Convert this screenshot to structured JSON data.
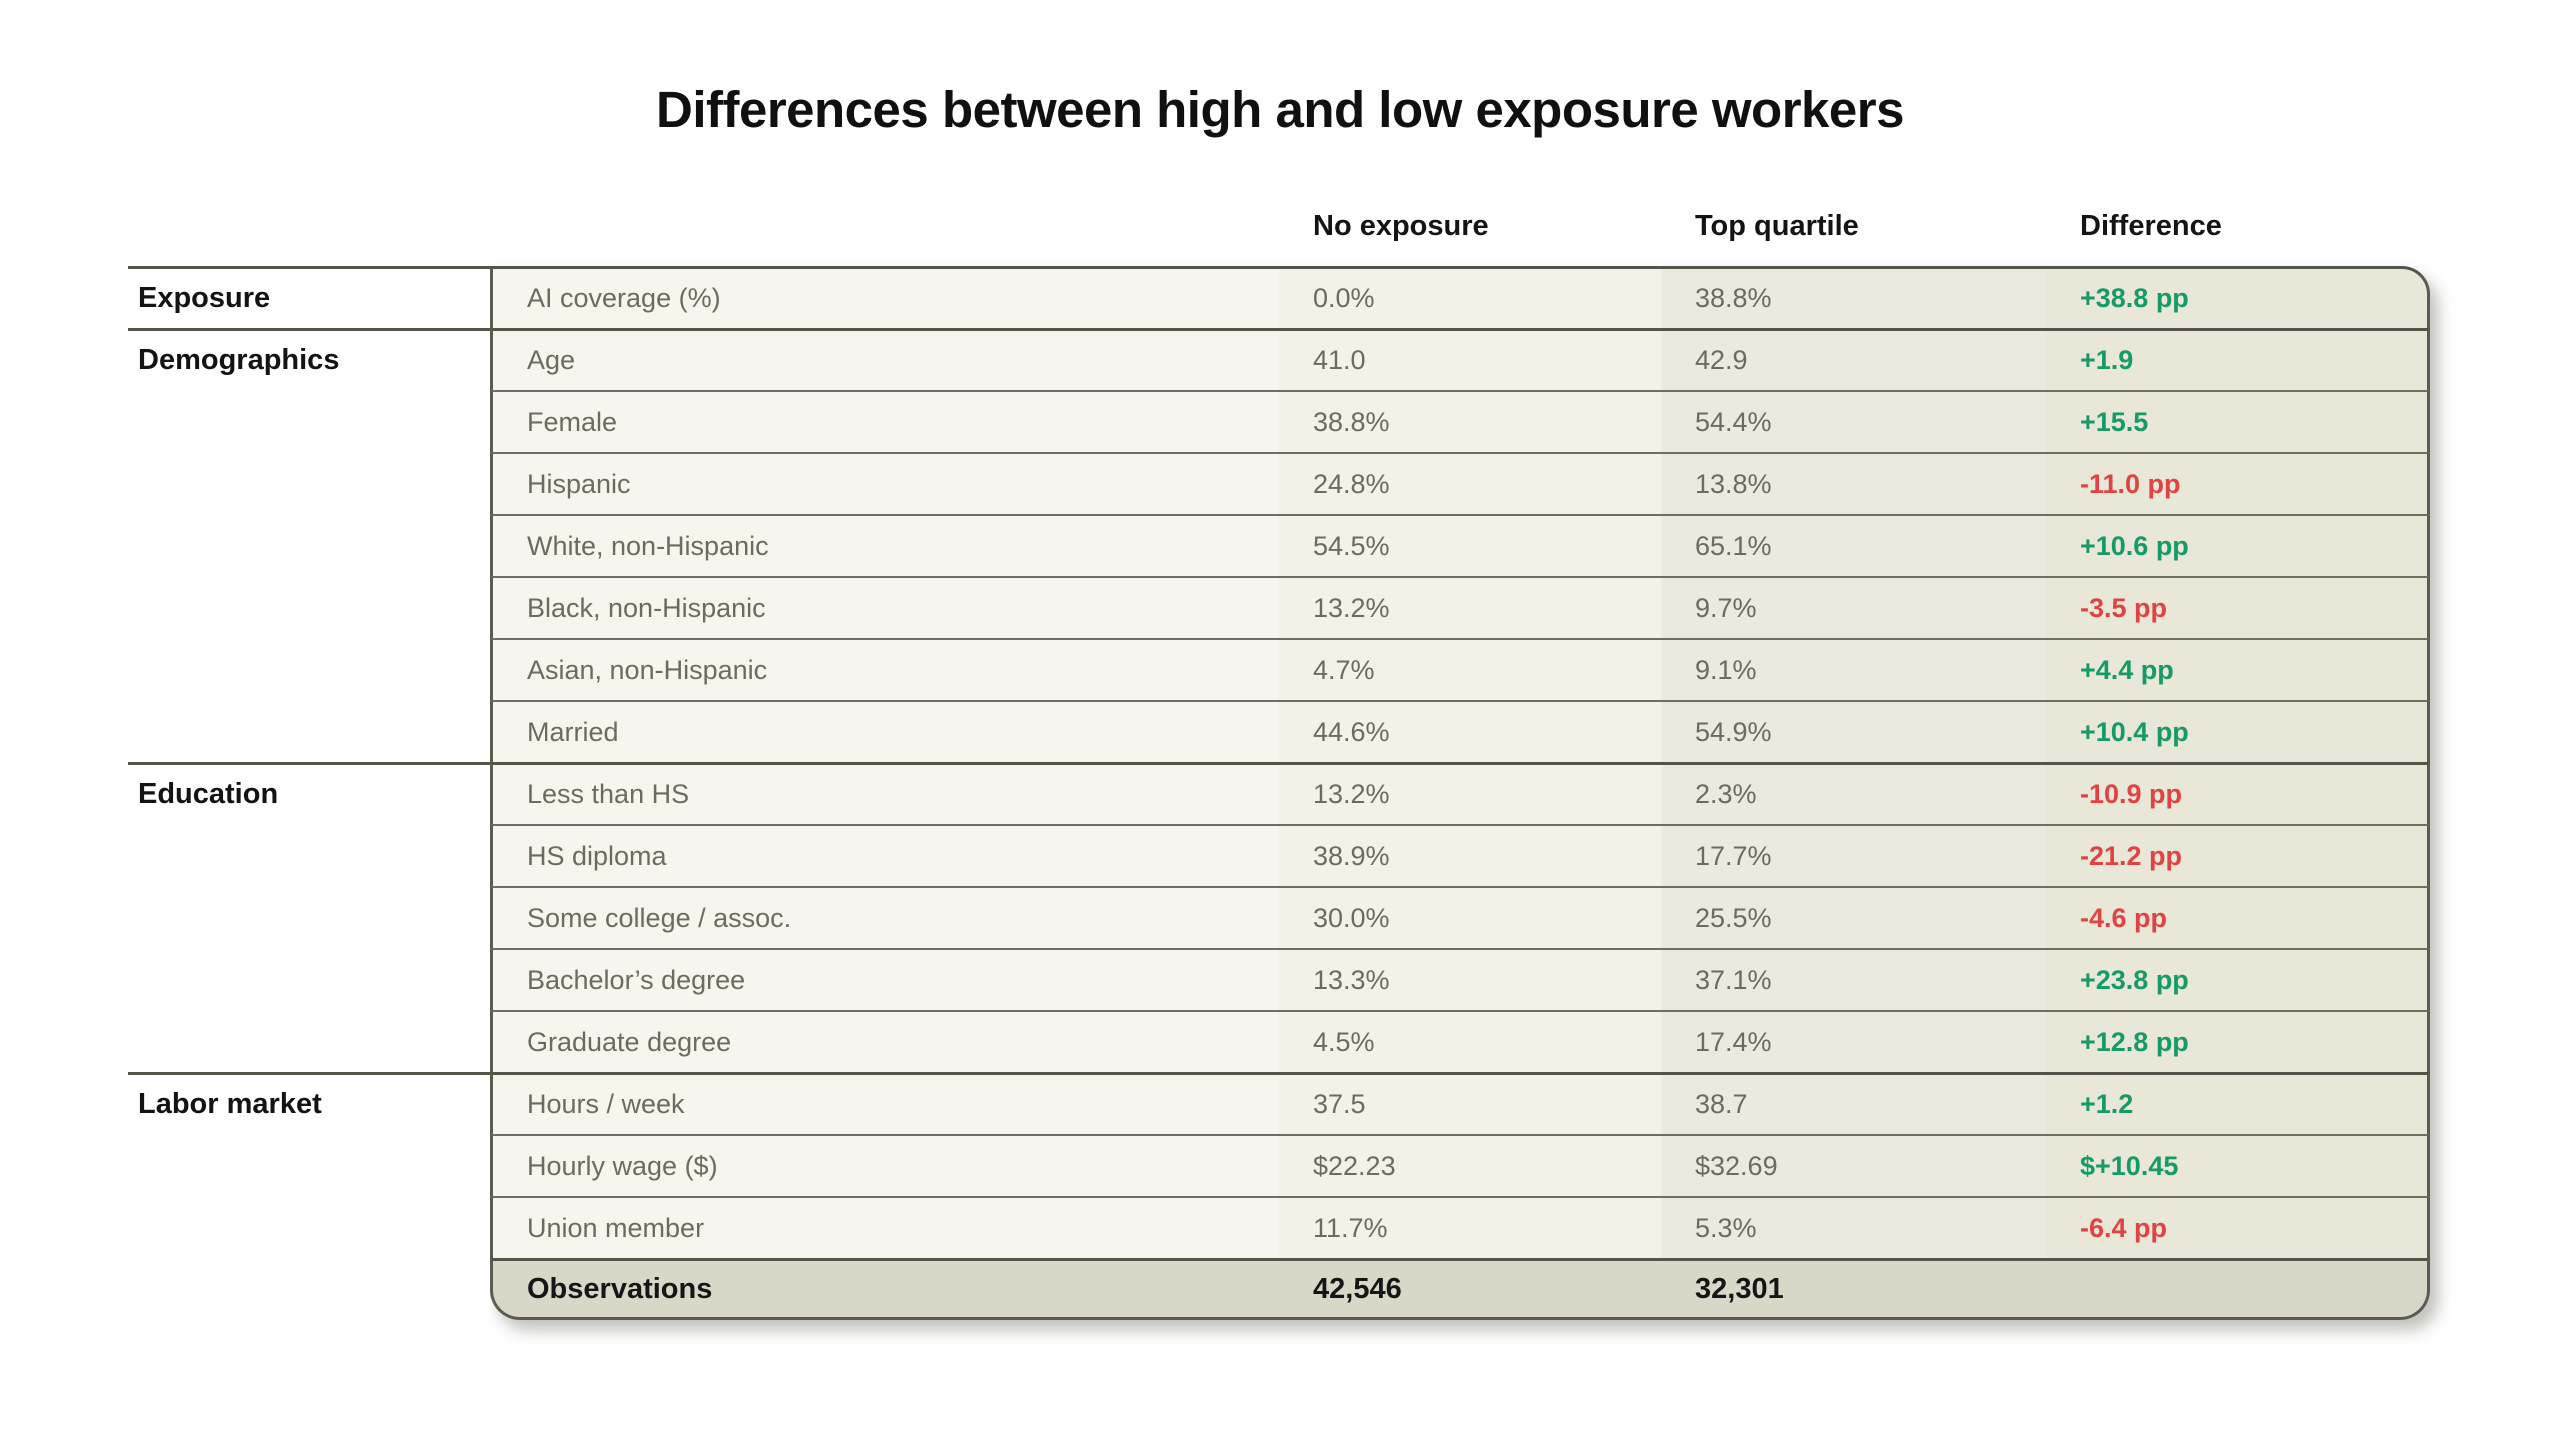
{
  "title": "Differences between high and low exposure workers",
  "colors": {
    "positive": "#169a68",
    "negative": "#e04343",
    "border_outer": "#5c5b51",
    "border_row": "#6f6e66",
    "total_row_bg": "#d9d8c8"
  },
  "chart_data": {
    "type": "table",
    "title": "Differences between high and low exposure workers",
    "columns": [
      "No exposure",
      "Top quartile",
      "Difference"
    ],
    "rows": [
      {
        "group": "Exposure",
        "metric": "AI coverage (%)",
        "no_exposure": "0.0%",
        "top_quartile": "38.8%",
        "difference": "+38.8 pp",
        "diff_sign": "positive",
        "section_start": true,
        "total": false
      },
      {
        "group": "Demographics",
        "metric": "Age",
        "no_exposure": "41.0",
        "top_quartile": "42.9",
        "difference": "+1.9",
        "diff_sign": "positive",
        "section_start": true,
        "total": false
      },
      {
        "group": "",
        "metric": "Female",
        "no_exposure": "38.8%",
        "top_quartile": "54.4%",
        "difference": "+15.5",
        "diff_sign": "positive",
        "section_start": false,
        "total": false
      },
      {
        "group": "",
        "metric": "Hispanic",
        "no_exposure": "24.8%",
        "top_quartile": "13.8%",
        "difference": "-11.0 pp",
        "diff_sign": "negative",
        "section_start": false,
        "total": false
      },
      {
        "group": "",
        "metric": "White, non-Hispanic",
        "no_exposure": "54.5%",
        "top_quartile": "65.1%",
        "difference": "+10.6 pp",
        "diff_sign": "positive",
        "section_start": false,
        "total": false
      },
      {
        "group": "",
        "metric": "Black, non-Hispanic",
        "no_exposure": "13.2%",
        "top_quartile": "9.7%",
        "difference": "-3.5 pp",
        "diff_sign": "negative",
        "section_start": false,
        "total": false
      },
      {
        "group": "",
        "metric": "Asian, non-Hispanic",
        "no_exposure": "4.7%",
        "top_quartile": "9.1%",
        "difference": "+4.4 pp",
        "diff_sign": "positive",
        "section_start": false,
        "total": false
      },
      {
        "group": "",
        "metric": "Married",
        "no_exposure": "44.6%",
        "top_quartile": "54.9%",
        "difference": "+10.4 pp",
        "diff_sign": "positive",
        "section_start": false,
        "total": false
      },
      {
        "group": "Education",
        "metric": "Less than HS",
        "no_exposure": "13.2%",
        "top_quartile": "2.3%",
        "difference": "-10.9 pp",
        "diff_sign": "negative",
        "section_start": true,
        "total": false
      },
      {
        "group": "",
        "metric": "HS diploma",
        "no_exposure": "38.9%",
        "top_quartile": "17.7%",
        "difference": "-21.2 pp",
        "diff_sign": "negative",
        "section_start": false,
        "total": false
      },
      {
        "group": "",
        "metric": "Some college / assoc.",
        "no_exposure": "30.0%",
        "top_quartile": "25.5%",
        "difference": "-4.6 pp",
        "diff_sign": "negative",
        "section_start": false,
        "total": false
      },
      {
        "group": "",
        "metric": "Bachelor’s degree",
        "no_exposure": "13.3%",
        "top_quartile": "37.1%",
        "difference": "+23.8 pp",
        "diff_sign": "positive",
        "section_start": false,
        "total": false
      },
      {
        "group": "",
        "metric": "Graduate degree",
        "no_exposure": "4.5%",
        "top_quartile": "17.4%",
        "difference": "+12.8 pp",
        "diff_sign": "positive",
        "section_start": false,
        "total": false
      },
      {
        "group": "Labor market",
        "metric": "Hours / week",
        "no_exposure": "37.5",
        "top_quartile": "38.7",
        "difference": "+1.2",
        "diff_sign": "positive",
        "section_start": true,
        "total": false
      },
      {
        "group": "",
        "metric": "Hourly wage ($)",
        "no_exposure": "$22.23",
        "top_quartile": "$32.69",
        "difference": "$+10.45",
        "diff_sign": "positive",
        "section_start": false,
        "total": false
      },
      {
        "group": "",
        "metric": "Union member",
        "no_exposure": "11.7%",
        "top_quartile": "5.3%",
        "difference": "-6.4 pp",
        "diff_sign": "negative",
        "section_start": false,
        "total": false
      },
      {
        "group": "",
        "metric": "Observations",
        "no_exposure": "42,546",
        "top_quartile": "32,301",
        "difference": "",
        "diff_sign": "none",
        "section_start": false,
        "total": true
      }
    ]
  }
}
